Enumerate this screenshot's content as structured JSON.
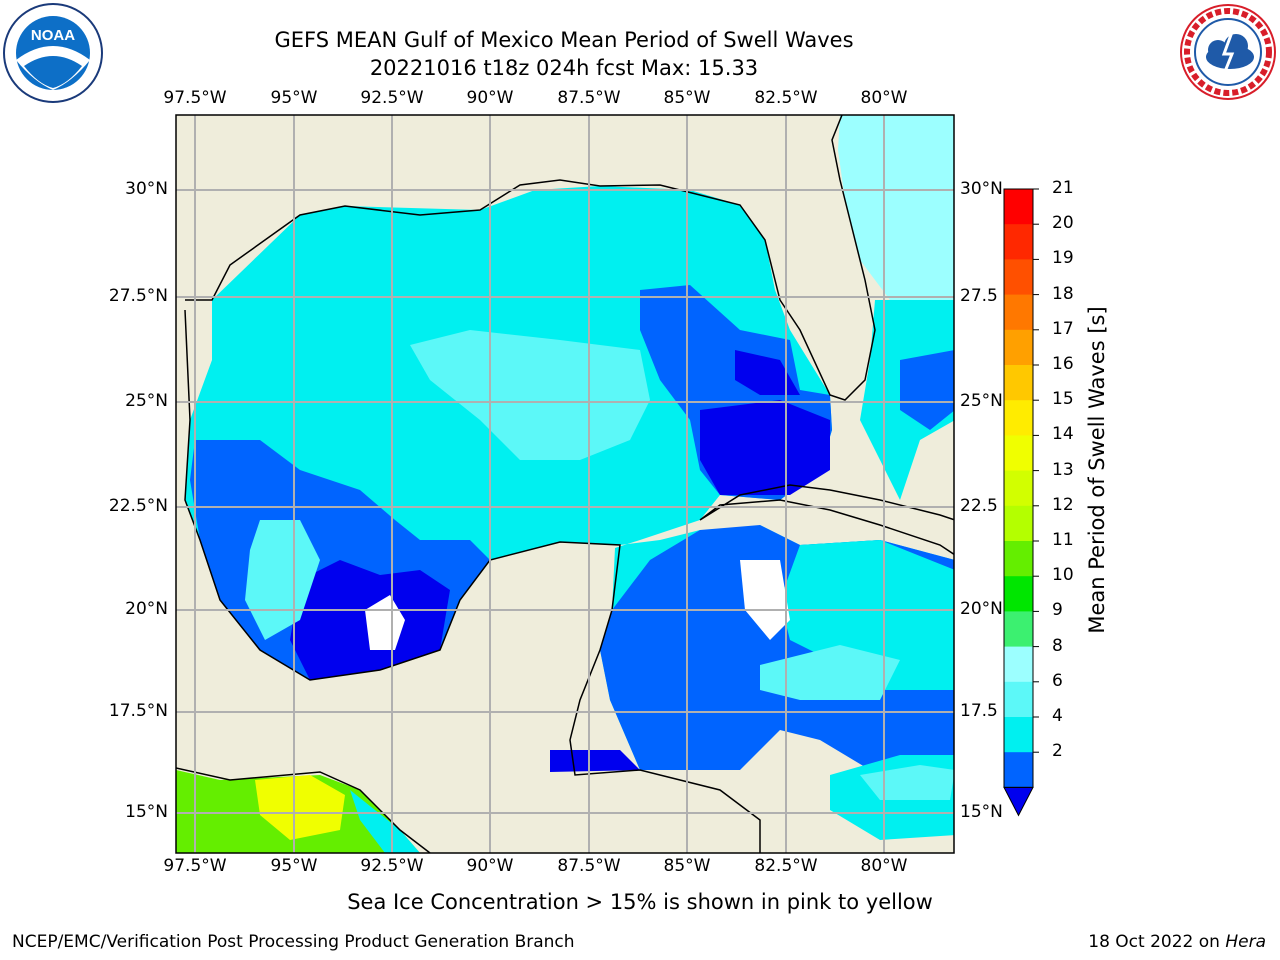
{
  "header": {
    "title_line1": "GEFS MEAN Gulf of Mexico Mean Period of Swell Waves",
    "title_line2": "20221016 t18z 024h fcst   Max: 15.33"
  },
  "logos": {
    "noaa_text": "NOAA",
    "noaa_ring": "NATIONAL OCEANIC AND ATMOSPHERIC ADMINISTRATION · U.S. DEPARTMENT OF COMMERCE",
    "nws_ring": "NATIONAL WEATHER SERVICE"
  },
  "map": {
    "lon_labels": [
      "97.5°W",
      "95°W",
      "92.5°W",
      "90°W",
      "87.5°W",
      "85°W",
      "82.5°W",
      "80°W"
    ],
    "lat_labels_left": [
      "30°N",
      "27.5°N",
      "25°N",
      "22.5°N",
      "20°N",
      "17.5°N",
      "15°N"
    ],
    "lat_labels_right": [
      "30°N",
      "27.5",
      "25°N",
      "22.5",
      "20°N",
      "17.5",
      "15°N"
    ],
    "land_color": "#efeddb",
    "grid_color": "#b0b0b0"
  },
  "colorbar": {
    "label": "Mean Period of Swell Waves [s]",
    "ticks": [
      "21",
      "20",
      "19",
      "18",
      "17",
      "16",
      "15",
      "14",
      "13",
      "12",
      "11",
      "10",
      "9",
      "8",
      "6",
      "4",
      "2"
    ],
    "colors_top_to_bottom": [
      "#ff0000",
      "#ff2800",
      "#ff5000",
      "#ff7800",
      "#ffa000",
      "#ffc800",
      "#ffec00",
      "#f0ff00",
      "#d2ff00",
      "#b4ff00",
      "#64ee00",
      "#00e600",
      "#3cf070",
      "#9cffff",
      "#5cf8f8",
      "#00f0f0",
      "#0064ff"
    ],
    "under_color": "#0000ee"
  },
  "ice_note": "Sea Ice Concentration > 15% is shown in pink to yellow",
  "footer": {
    "left": "NCEP/EMC/Verification Post Processing Product Generation Branch",
    "date": "18 Oct 2022 on ",
    "host": "Hera"
  }
}
